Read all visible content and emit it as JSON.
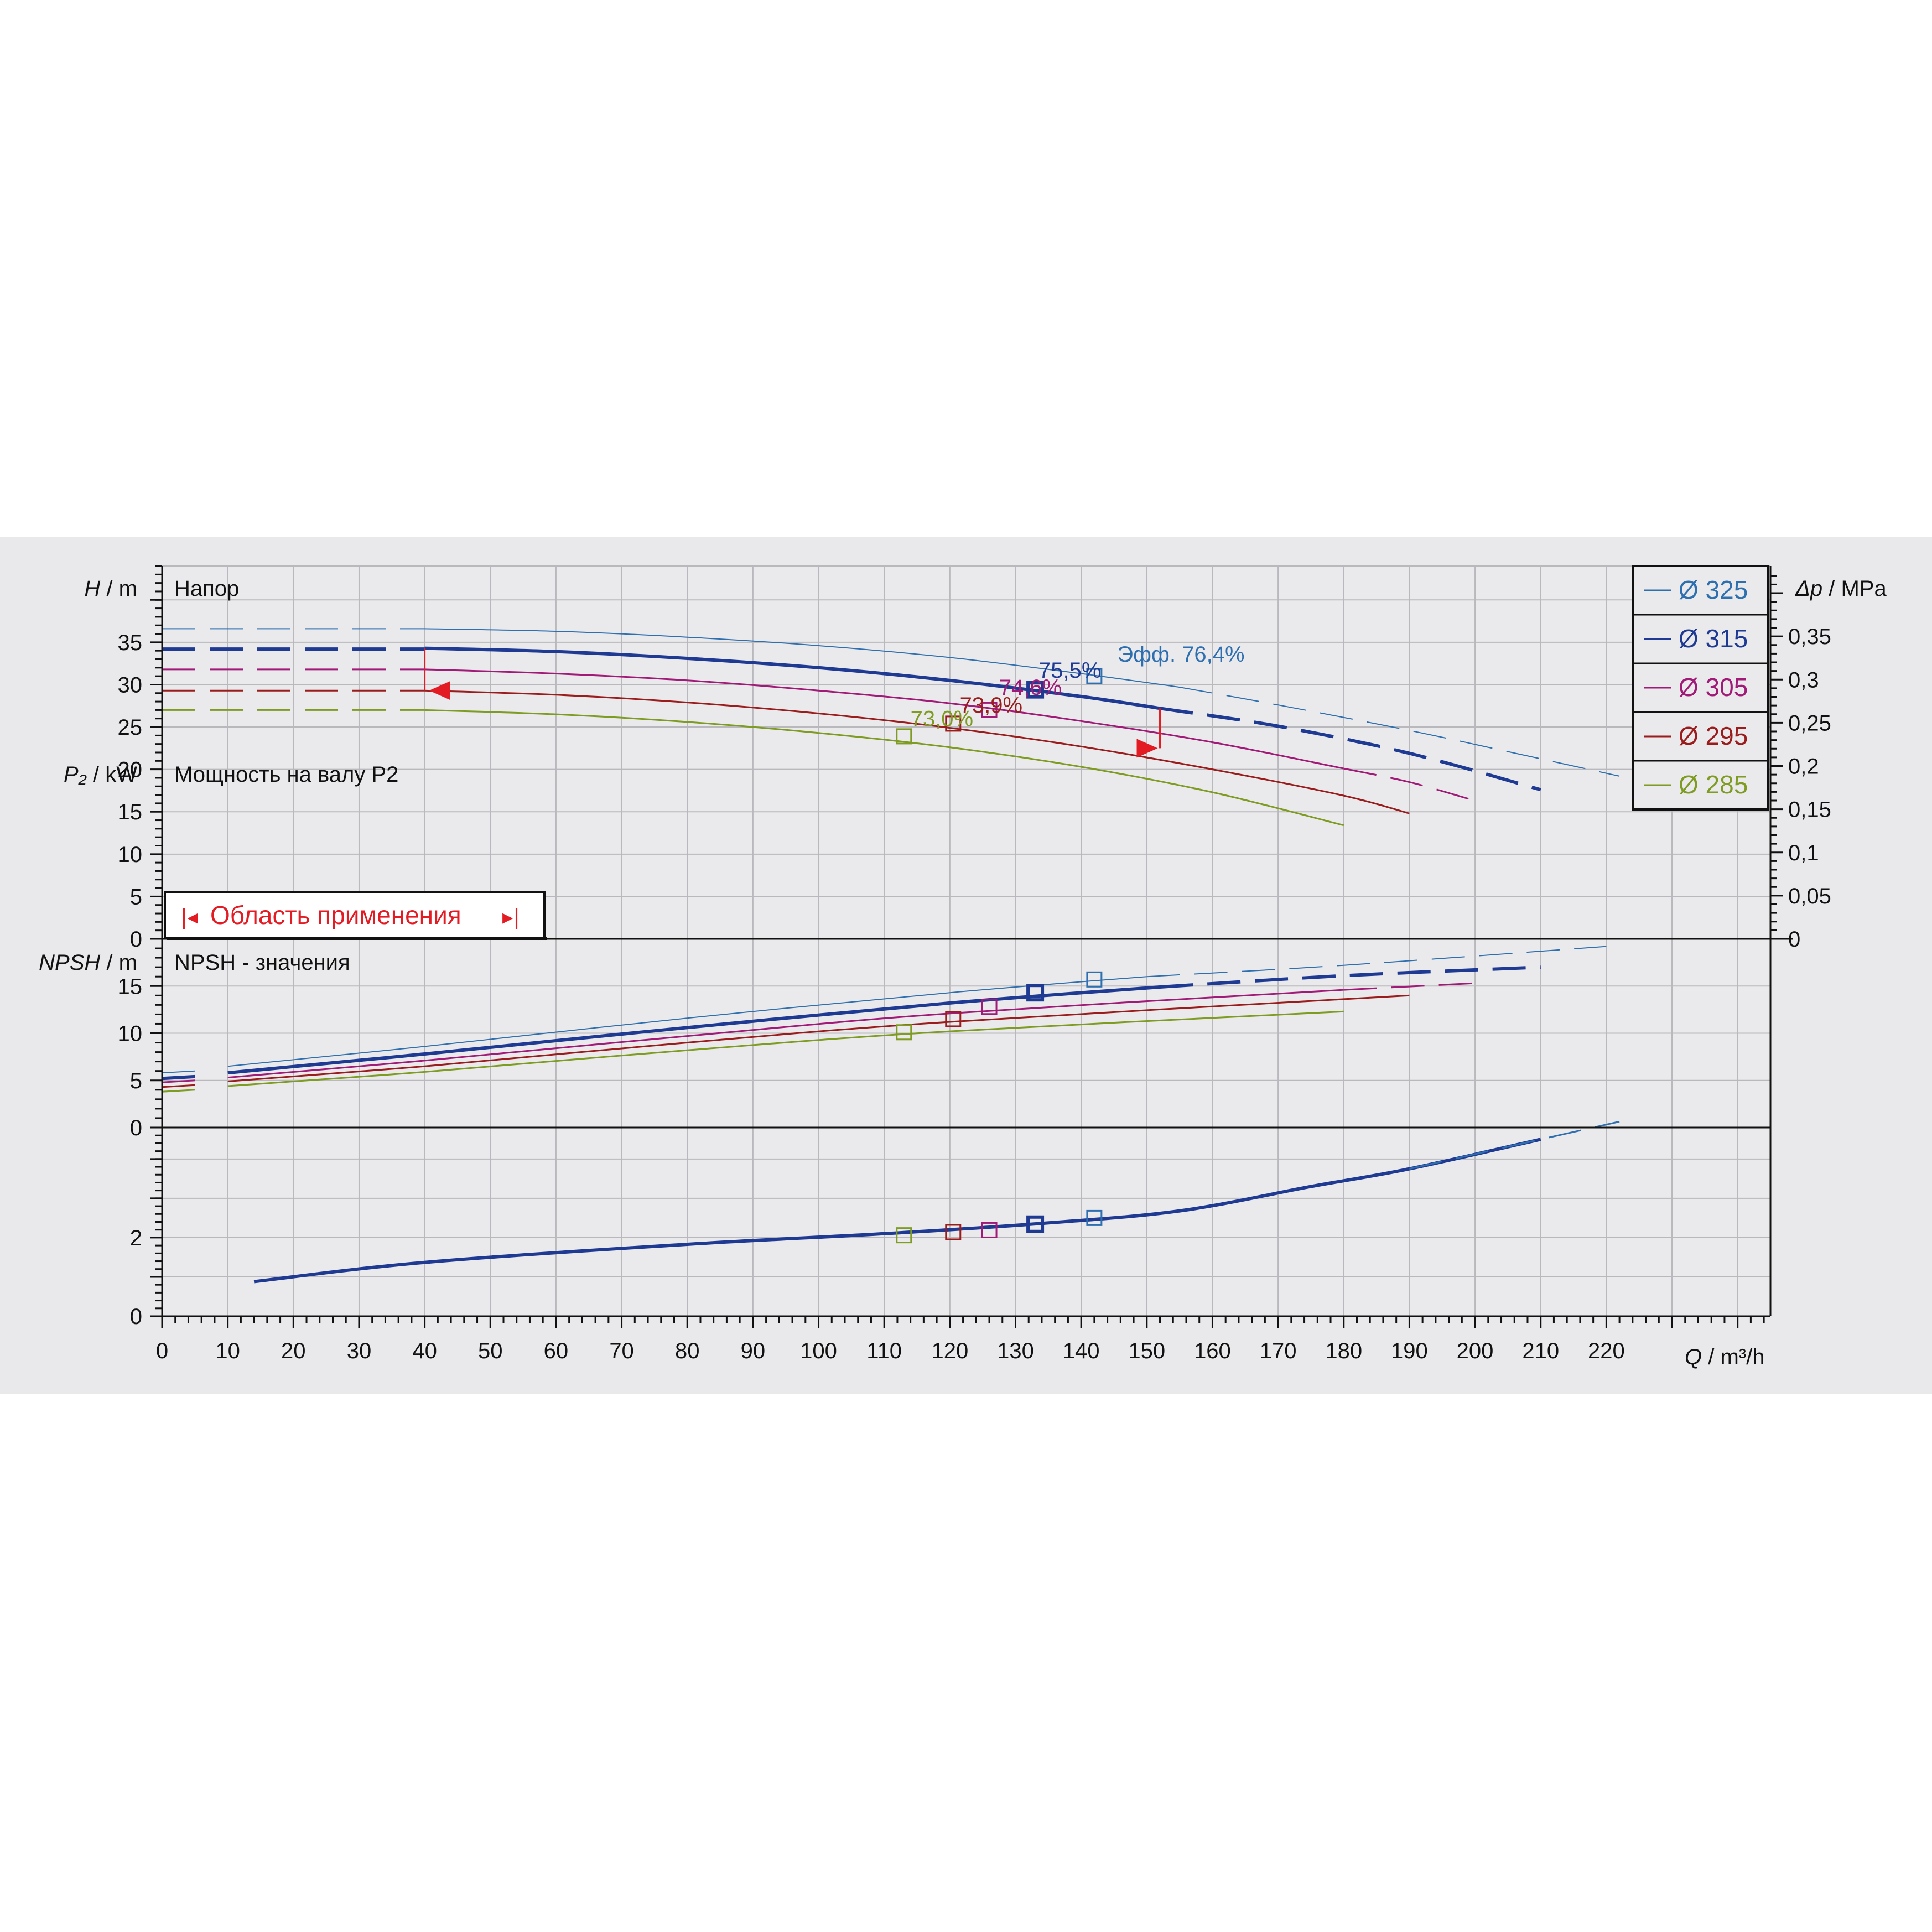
{
  "chart_data": {
    "type": "line",
    "x_axis": {
      "label_symbol": "Q",
      "label_unit": "m³/h",
      "range": [
        0,
        245
      ],
      "ticks": [
        0,
        10,
        20,
        30,
        40,
        50,
        60,
        70,
        80,
        90,
        100,
        110,
        120,
        130,
        140,
        150,
        160,
        170,
        180,
        190,
        200,
        210,
        220
      ]
    },
    "panels": {
      "head": {
        "title": "Напор",
        "y_label_symbol": "H",
        "y_label_unit": "m",
        "ylim": [
          0,
          44
        ],
        "y_ticks": [
          0,
          5,
          10,
          15,
          20,
          25,
          30,
          35
        ],
        "right_axis": {
          "label_symbol": "Δp",
          "label_unit": "MPa",
          "ticks": [
            0,
            0.05,
            0.1,
            0.15,
            0.2,
            0.25,
            0.3,
            0.35
          ],
          "tick_labels": [
            "0",
            "0,05",
            "0,1",
            "0,15",
            "0,2",
            "0,25",
            "0,3",
            "0,35"
          ]
        },
        "series": [
          {
            "name": "Ø 325",
            "color": "#2e6fb0",
            "width": 2,
            "dashed": [
              [
                0,
                36.6
              ],
              [
                40,
                36.6
              ]
            ],
            "solid": [
              [
                40,
                36.6
              ],
              [
                60,
                36.3
              ],
              [
                80,
                35.6
              ],
              [
                100,
                34.6
              ],
              [
                120,
                33.2
              ],
              [
                140,
                31.3
              ],
              [
                155,
                29.7
              ]
            ],
            "dashed_end": [
              [
                155,
                29.7
              ],
              [
                170,
                27.6
              ],
              [
                190,
                24.6
              ],
              [
                205,
                22.1
              ],
              [
                222,
                19.2
              ]
            ]
          },
          {
            "name": "Ø 315",
            "color": "#1f3a93",
            "width": 6,
            "dashed": [
              [
                0,
                34.2
              ],
              [
                40,
                34.2
              ]
            ],
            "solid": [
              [
                40,
                34.3
              ],
              [
                60,
                33.9
              ],
              [
                80,
                33.1
              ],
              [
                100,
                32.0
              ],
              [
                120,
                30.5
              ],
              [
                140,
                28.6
              ],
              [
                152,
                27.2
              ]
            ],
            "dashed_end": [
              [
                152,
                27.2
              ],
              [
                170,
                25.1
              ],
              [
                190,
                21.9
              ],
              [
                210,
                17.6
              ]
            ]
          },
          {
            "name": "Ø 305",
            "color": "#a11a78",
            "width": 3,
            "dashed": [
              [
                0,
                31.8
              ],
              [
                40,
                31.8
              ]
            ],
            "solid": [
              [
                40,
                31.8
              ],
              [
                60,
                31.3
              ],
              [
                80,
                30.5
              ],
              [
                100,
                29.3
              ],
              [
                120,
                27.8
              ],
              [
                140,
                25.7
              ],
              [
                160,
                23.2
              ],
              [
                180,
                20.1
              ]
            ],
            "dashed_end": [
              [
                180,
                20.1
              ],
              [
                190,
                18.5
              ],
              [
                200,
                16.3
              ]
            ]
          },
          {
            "name": "Ø 295",
            "color": "#9b1c1c",
            "width": 3,
            "dashed": [
              [
                0,
                29.3
              ],
              [
                40,
                29.3
              ]
            ],
            "solid": [
              [
                40,
                29.3
              ],
              [
                60,
                28.8
              ],
              [
                80,
                27.9
              ],
              [
                100,
                26.6
              ],
              [
                120,
                24.9
              ],
              [
                140,
                22.7
              ],
              [
                160,
                20.0
              ],
              [
                180,
                16.9
              ],
              [
                190,
                14.8
              ]
            ],
            "dashed_end": []
          },
          {
            "name": "Ø 285",
            "color": "#7e9b22",
            "width": 3,
            "dashed": [
              [
                0,
                27.0
              ],
              [
                40,
                27.0
              ]
            ],
            "solid": [
              [
                40,
                27.0
              ],
              [
                60,
                26.5
              ],
              [
                80,
                25.6
              ],
              [
                100,
                24.3
              ],
              [
                120,
                22.6
              ],
              [
                140,
                20.3
              ],
              [
                160,
                17.3
              ],
              [
                180,
                13.4
              ]
            ],
            "dashed_end": []
          }
        ],
        "bep_markers": [
          {
            "series": "Ø 325",
            "x": 142,
            "y": 31.0,
            "label": "Эфф.  76,4%",
            "label_x": 145.5,
            "label_y": 32.7
          },
          {
            "series": "Ø 315",
            "x": 133,
            "y": 29.4,
            "label": "75,5%",
            "label_x": 133.5,
            "label_y": 30.8
          },
          {
            "series": "Ø 305",
            "x": 126,
            "y": 27.0,
            "label": "74,6%",
            "label_x": 127.5,
            "label_y": 28.8
          },
          {
            "series": "Ø 295",
            "x": 120.5,
            "y": 25.4,
            "label": "73,9%",
            "label_x": 121.5,
            "label_y": 26.7
          },
          {
            "series": "Ø 285",
            "x": 113,
            "y": 23.9,
            "label": "73,0%",
            "label_x": 114,
            "label_y": 25.1
          }
        ],
        "application_range": {
          "q_min": 40,
          "q_max": 152,
          "h_at_min": 29.3,
          "h_at_max": 22.5,
          "vline_min": [
            29.3,
            34.3
          ],
          "vline_max": [
            22.5,
            27.2
          ]
        },
        "range_box_label": "Область применения"
      },
      "power": {
        "title": "Мощность на валу P2",
        "y_label_symbol": "P₂",
        "y_label_unit": "kW",
        "ylim": [
          0,
          20
        ],
        "y_ticks": [
          0,
          5,
          10,
          15
        ],
        "series": [
          {
            "name": "Ø 325",
            "color": "#2e6fb0",
            "width": 2,
            "segments": [
              [
                [
                  0,
                  5.8
                ],
                [
                  5,
                  6.0
                ]
              ],
              [
                [
                  10,
                  6.5
                ],
                [
                  40,
                  8.6
                ],
                [
                  80,
                  11.6
                ],
                [
                  120,
                  14.3
                ],
                [
                  150,
                  16.0
                ]
              ]
            ],
            "dashed_end": [
              [
                150,
                16.0
              ],
              [
                180,
                17.2
              ],
              [
                220,
                19.2
              ]
            ]
          },
          {
            "name": "Ø 315",
            "color": "#1f3a93",
            "width": 6,
            "segments": [
              [
                [
                  0,
                  5.2
                ],
                [
                  5,
                  5.4
                ]
              ],
              [
                [
                  10,
                  5.8
                ],
                [
                  40,
                  7.8
                ],
                [
                  80,
                  10.6
                ],
                [
                  120,
                  13.2
                ],
                [
                  152,
                  14.9
                ]
              ]
            ],
            "dashed_end": [
              [
                152,
                14.9
              ],
              [
                180,
                16.1
              ],
              [
                210,
                17.0
              ]
            ]
          },
          {
            "name": "Ø 305",
            "color": "#a11a78",
            "width": 3,
            "segments": [
              [
                [
                  0,
                  4.8
                ],
                [
                  5,
                  5.0
                ]
              ],
              [
                [
                  10,
                  5.3
                ],
                [
                  40,
                  7.1
                ],
                [
                  80,
                  9.7
                ],
                [
                  120,
                  12.1
                ],
                [
                  180,
                  14.6
                ]
              ]
            ],
            "dashed_end": [
              [
                180,
                14.6
              ],
              [
                200,
                15.3
              ]
            ]
          },
          {
            "name": "Ø 295",
            "color": "#9b1c1c",
            "width": 3,
            "segments": [
              [
                [
                  0,
                  4.3
                ],
                [
                  5,
                  4.5
                ]
              ],
              [
                [
                  10,
                  4.9
                ],
                [
                  40,
                  6.5
                ],
                [
                  80,
                  9.0
                ],
                [
                  120,
                  11.2
                ],
                [
                  190,
                  14.0
                ]
              ]
            ],
            "dashed_end": []
          },
          {
            "name": "Ø 285",
            "color": "#7e9b22",
            "width": 3,
            "segments": [
              [
                [
                  0,
                  3.8
                ],
                [
                  5,
                  4.0
                ]
              ],
              [
                [
                  10,
                  4.4
                ],
                [
                  40,
                  5.9
                ],
                [
                  80,
                  8.2
                ],
                [
                  120,
                  10.2
                ],
                [
                  180,
                  12.3
                ]
              ]
            ],
            "dashed_end": []
          }
        ],
        "markers": [
          {
            "series": "Ø 325",
            "x": 142,
            "y": 15.7
          },
          {
            "series": "Ø 315",
            "x": 133,
            "y": 14.3
          },
          {
            "series": "Ø 305",
            "x": 126,
            "y": 12.8
          },
          {
            "series": "Ø 295",
            "x": 120.5,
            "y": 11.5
          },
          {
            "series": "Ø 285",
            "x": 113,
            "y": 10.1
          }
        ]
      },
      "npsh": {
        "title": "NPSH - значения",
        "y_label_symbol": "NPSH",
        "y_label_unit": "m",
        "ylim": [
          0,
          4.8
        ],
        "y_ticks": [
          0,
          2
        ],
        "series": [
          {
            "name": "NPSH",
            "color": "#1f3a93",
            "width": 6,
            "points": [
              [
                14,
                0.88
              ],
              [
                40,
                1.37
              ],
              [
                80,
                1.83
              ],
              [
                110,
                2.1
              ],
              [
                133,
                2.35
              ],
              [
                155,
                2.68
              ],
              [
                175,
                3.3
              ],
              [
                190,
                3.75
              ],
              [
                210,
                4.5
              ]
            ],
            "dashed_end": [
              [
                190,
                3.75
              ],
              [
                210,
                4.5
              ],
              [
                222,
                4.95
              ]
            ]
          }
        ],
        "markers": [
          {
            "series": "Ø 285",
            "x": 113,
            "y": 2.06
          },
          {
            "series": "Ø 295",
            "x": 120.5,
            "y": 2.14
          },
          {
            "series": "Ø 305",
            "x": 126,
            "y": 2.19
          },
          {
            "series": "Ø 315",
            "x": 133,
            "y": 2.34
          },
          {
            "series": "Ø 325",
            "x": 142,
            "y": 2.5
          }
        ]
      }
    },
    "legend": {
      "placement": "top-right",
      "entries": [
        "Ø 325",
        "Ø 315",
        "Ø 305",
        "Ø 295",
        "Ø 285"
      ]
    },
    "grid": true
  }
}
